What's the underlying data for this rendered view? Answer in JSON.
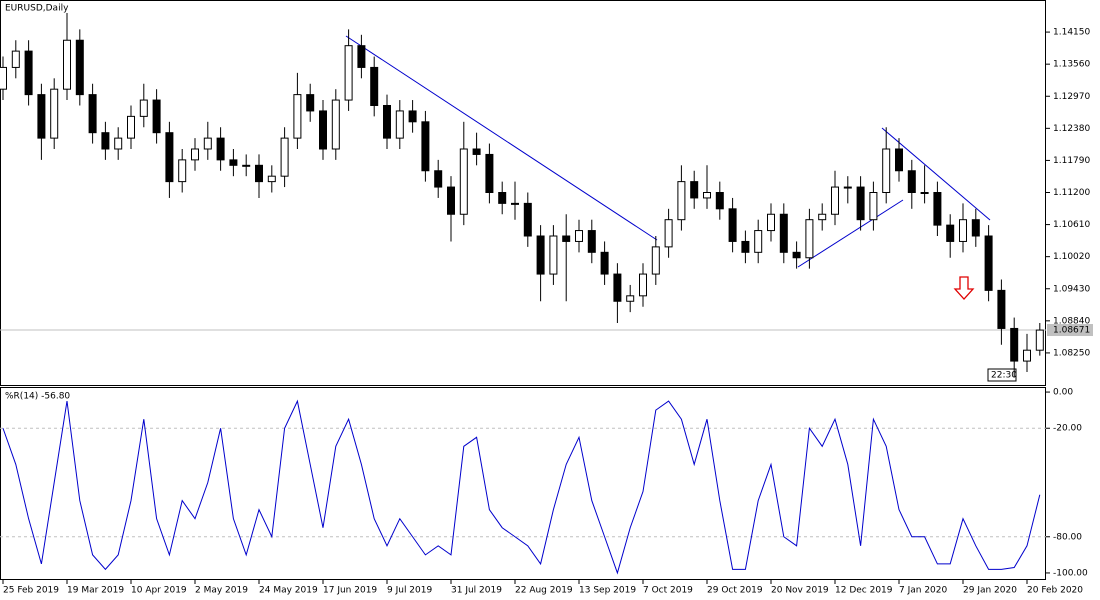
{
  "chart_data": [
    {
      "type": "candlestick",
      "title": "EURUSD,Daily",
      "color": "#000000",
      "ylim": [
        1.0766,
        1.1474
      ],
      "yticks": [
        {
          "value": 1.1415,
          "label": "1.14150"
        },
        {
          "value": 1.1356,
          "label": "1.13560"
        },
        {
          "value": 1.1297,
          "label": "1.12970"
        },
        {
          "value": 1.1238,
          "label": "1.12380"
        },
        {
          "value": 1.1179,
          "label": "1.11790"
        },
        {
          "value": 1.112,
          "label": "1.11200"
        },
        {
          "value": 1.1061,
          "label": "1.10610"
        },
        {
          "value": 1.1002,
          "label": "1.10020"
        },
        {
          "value": 1.0943,
          "label": "1.09430"
        },
        {
          "value": 1.0884,
          "label": "1.08840"
        },
        {
          "value": 1.0825,
          "label": "1.08250"
        }
      ],
      "last_price": {
        "value": 1.08671,
        "label": "1.08671"
      },
      "time_label": "22:30",
      "open": [
        1.131,
        1.135,
        1.138,
        1.13,
        1.122,
        1.131,
        1.14,
        1.13,
        1.123,
        1.12,
        1.122,
        1.126,
        1.129,
        1.123,
        1.114,
        1.118,
        1.12,
        1.122,
        1.118,
        1.117,
        1.117,
        1.114,
        1.115,
        1.122,
        1.13,
        1.127,
        1.12,
        1.129,
        1.139,
        1.135,
        1.128,
        1.122,
        1.127,
        1.125,
        1.116,
        1.113,
        1.108,
        1.12,
        1.119,
        1.112,
        1.11,
        1.11,
        1.104,
        1.097,
        1.104,
        1.103,
        1.105,
        1.101,
        1.097,
        1.092,
        1.093,
        1.097,
        1.102,
        1.107,
        1.114,
        1.111,
        1.112,
        1.109,
        1.103,
        1.101,
        1.105,
        1.108,
        1.101,
        1.1,
        1.107,
        1.108,
        1.113,
        1.113,
        1.107,
        1.112,
        1.12,
        1.116,
        1.112,
        1.112,
        1.106,
        1.103,
        1.107,
        1.104,
        1.094,
        1.087,
        1.081,
        1.083
      ],
      "high": [
        1.137,
        1.14,
        1.14,
        1.132,
        1.133,
        1.145,
        1.142,
        1.132,
        1.125,
        1.124,
        1.128,
        1.132,
        1.131,
        1.125,
        1.12,
        1.122,
        1.125,
        1.124,
        1.12,
        1.119,
        1.119,
        1.117,
        1.124,
        1.134,
        1.132,
        1.129,
        1.131,
        1.142,
        1.141,
        1.137,
        1.13,
        1.129,
        1.129,
        1.127,
        1.118,
        1.115,
        1.125,
        1.123,
        1.121,
        1.114,
        1.114,
        1.112,
        1.106,
        1.106,
        1.108,
        1.107,
        1.107,
        1.103,
        1.099,
        1.095,
        1.099,
        1.104,
        1.109,
        1.117,
        1.116,
        1.117,
        1.114,
        1.111,
        1.105,
        1.107,
        1.11,
        1.11,
        1.103,
        1.109,
        1.11,
        1.116,
        1.115,
        1.115,
        1.114,
        1.124,
        1.122,
        1.118,
        1.117,
        1.114,
        1.108,
        1.11,
        1.109,
        1.106,
        1.096,
        1.089,
        1.086,
        1.088
      ],
      "low": [
        1.129,
        1.133,
        1.128,
        1.118,
        1.12,
        1.129,
        1.128,
        1.121,
        1.118,
        1.118,
        1.12,
        1.124,
        1.121,
        1.111,
        1.112,
        1.116,
        1.118,
        1.116,
        1.115,
        1.115,
        1.111,
        1.112,
        1.113,
        1.12,
        1.125,
        1.118,
        1.118,
        1.127,
        1.133,
        1.126,
        1.12,
        1.12,
        1.123,
        1.114,
        1.111,
        1.103,
        1.106,
        1.117,
        1.11,
        1.108,
        1.107,
        1.102,
        1.092,
        1.095,
        1.092,
        1.101,
        1.099,
        1.095,
        1.088,
        1.09,
        1.091,
        1.095,
        1.1,
        1.105,
        1.109,
        1.109,
        1.107,
        1.101,
        1.099,
        1.099,
        1.103,
        1.099,
        1.098,
        1.098,
        1.105,
        1.106,
        1.11,
        1.105,
        1.105,
        1.11,
        1.114,
        1.109,
        1.11,
        1.104,
        1.1,
        1.101,
        1.102,
        1.092,
        1.084,
        1.078,
        1.079,
        1.082
      ],
      "close": [
        1.135,
        1.138,
        1.13,
        1.122,
        1.131,
        1.14,
        1.13,
        1.123,
        1.12,
        1.122,
        1.126,
        1.129,
        1.123,
        1.114,
        1.118,
        1.12,
        1.122,
        1.118,
        1.117,
        1.117,
        1.114,
        1.115,
        1.122,
        1.13,
        1.127,
        1.12,
        1.129,
        1.139,
        1.135,
        1.128,
        1.122,
        1.127,
        1.125,
        1.116,
        1.113,
        1.108,
        1.12,
        1.119,
        1.112,
        1.11,
        1.11,
        1.104,
        1.097,
        1.104,
        1.103,
        1.105,
        1.101,
        1.097,
        1.092,
        1.093,
        1.097,
        1.102,
        1.107,
        1.114,
        1.111,
        1.112,
        1.109,
        1.103,
        1.101,
        1.105,
        1.108,
        1.101,
        1.1,
        1.107,
        1.108,
        1.113,
        1.113,
        1.107,
        1.112,
        1.12,
        1.116,
        1.112,
        1.112,
        1.106,
        1.103,
        1.107,
        1.104,
        1.094,
        1.087,
        1.081,
        1.083,
        1.0867
      ]
    },
    {
      "type": "line",
      "title": "%R(14) -56.80",
      "color": "#0000cc",
      "ylim": [
        -103.9,
        2.8
      ],
      "yticks": [
        {
          "value": 0,
          "label": "0.00"
        },
        {
          "value": -20,
          "label": "-20.00"
        },
        {
          "value": -80,
          "label": "-80.00"
        },
        {
          "value": -100,
          "label": "-100.00"
        }
      ],
      "grid_values": [
        -20,
        -80
      ],
      "xticks": [
        {
          "value": 0,
          "label": "25 Feb 2019"
        },
        {
          "value": 5,
          "label": "19 Mar 2019"
        },
        {
          "value": 10,
          "label": "10 Apr 2019"
        },
        {
          "value": 15,
          "label": "2 May 2019"
        },
        {
          "value": 20,
          "label": "24 May 2019"
        },
        {
          "value": 25,
          "label": "17 Jun 2019"
        },
        {
          "value": 30,
          "label": "9 Jul 2019"
        },
        {
          "value": 35,
          "label": "31 Jul 2019"
        },
        {
          "value": 40,
          "label": "22 Aug 2019"
        },
        {
          "value": 45,
          "label": "13 Sep 2019"
        },
        {
          "value": 50,
          "label": "7 Oct 2019"
        },
        {
          "value": 55,
          "label": "29 Oct 2019"
        },
        {
          "value": 60,
          "label": "20 Nov 2019"
        },
        {
          "value": 65,
          "label": "12 Dec 2019"
        },
        {
          "value": 70,
          "label": "7 Jan 2020"
        },
        {
          "value": 75,
          "label": "29 Jan 2020"
        },
        {
          "value": 80,
          "label": "20 Feb 2020"
        }
      ],
      "values": [
        -20,
        -40,
        -70,
        -95,
        -50,
        -5,
        -60,
        -90,
        -98,
        -90,
        -60,
        -15,
        -70,
        -90,
        -60,
        -70,
        -50,
        -20,
        -70,
        -90,
        -65,
        -80,
        -20,
        -5,
        -40,
        -75,
        -30,
        -15,
        -40,
        -70,
        -85,
        -70,
        -80,
        -90,
        -85,
        -90,
        -30,
        -25,
        -65,
        -75,
        -80,
        -85,
        -95,
        -65,
        -40,
        -25,
        -60,
        -80,
        -100,
        -75,
        -55,
        -10,
        -5,
        -15,
        -40,
        -15,
        -60,
        -98,
        -98,
        -60,
        -40,
        -80,
        -85,
        -20,
        -30,
        -15,
        -40,
        -85,
        -15,
        -30,
        -65,
        -80,
        -80,
        -95,
        -95,
        -70,
        -85,
        -98,
        -98,
        -97,
        -85,
        -56.8
      ]
    }
  ]
}
